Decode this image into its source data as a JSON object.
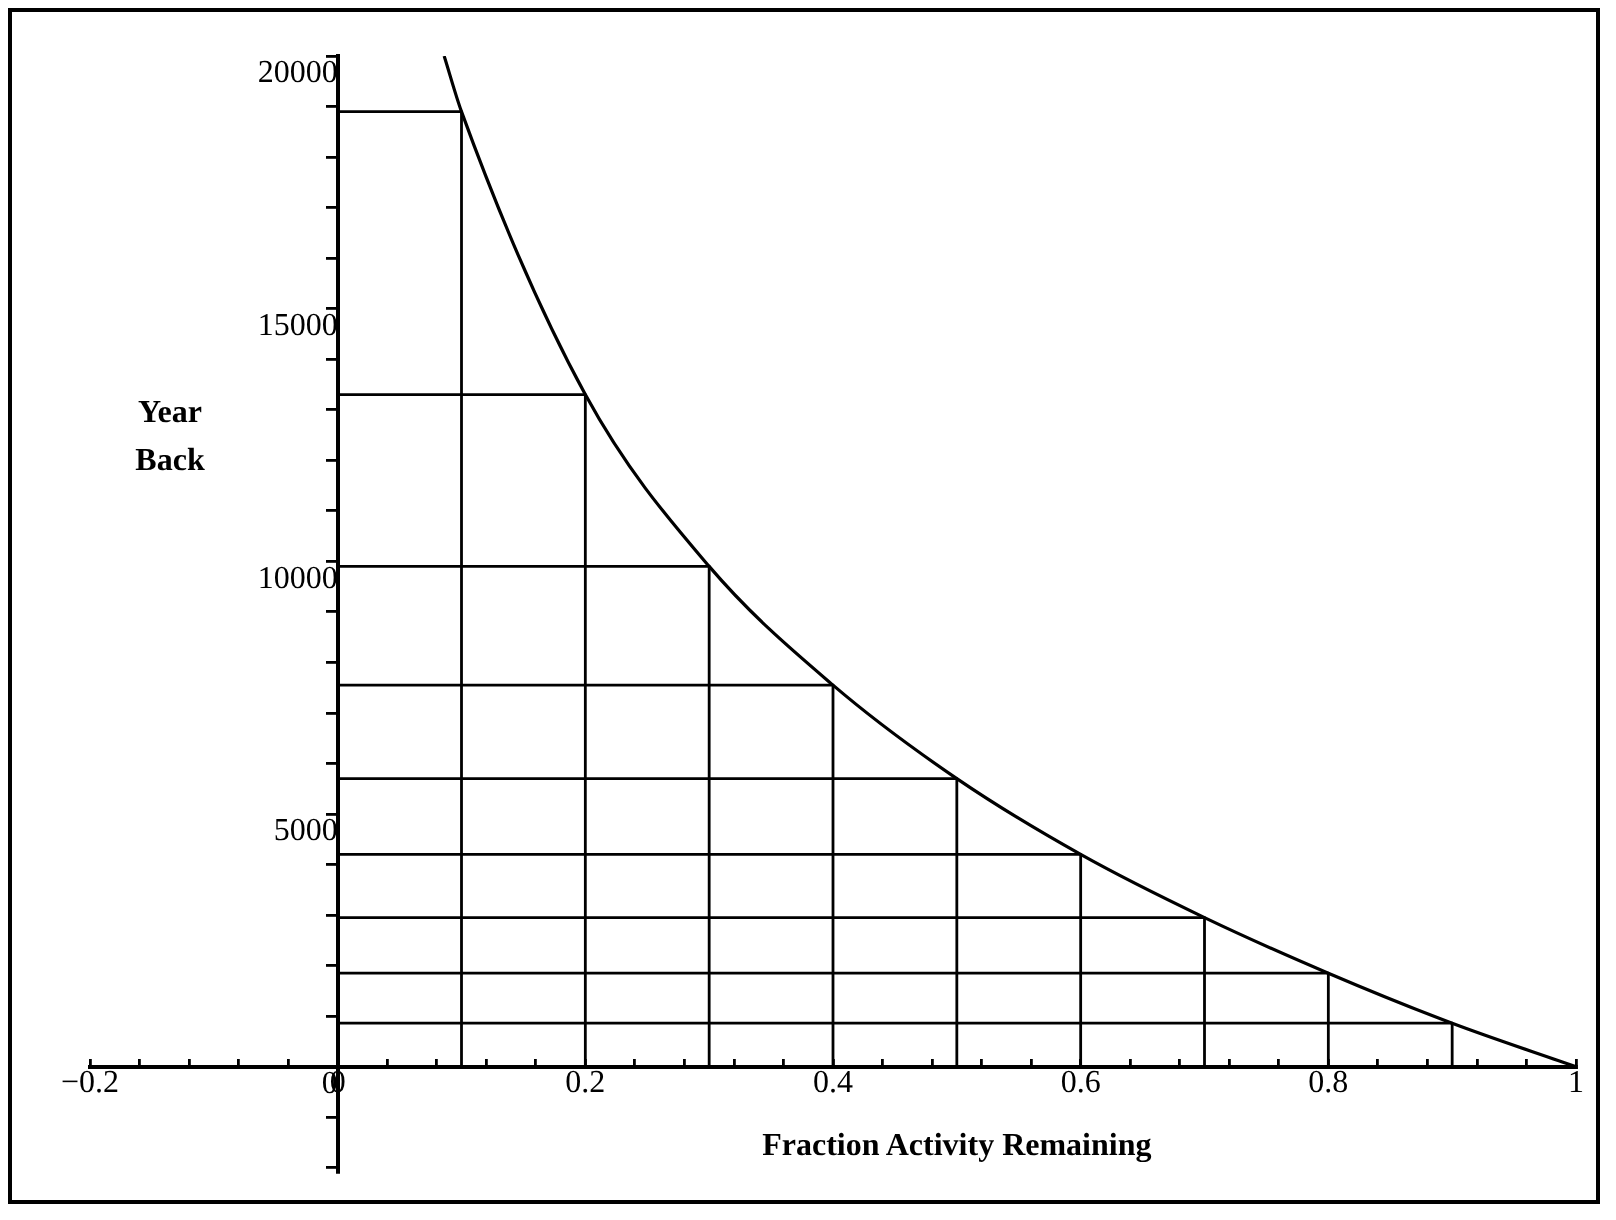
{
  "chart_data": {
    "type": "line",
    "xlabel": "Fraction Activity Remaining",
    "ylabel": "Year Back",
    "x": [
      0.086,
      0.1,
      0.2,
      0.3,
      0.4,
      0.5,
      0.6,
      0.7,
      0.8,
      0.9,
      1
    ],
    "series": [
      {
        "color": "#000000",
        "values": [
          20000,
          18900,
          13300,
          9900,
          7550,
          5700,
          4200,
          2950,
          1850,
          860,
          0
        ]
      },
      {
        "color": "#000000",
        "x": [
          0,
          0.1,
          0.1
        ],
        "values": [
          18900,
          18900,
          0
        ]
      },
      {
        "color": "#000000",
        "x": [
          0,
          0.2,
          0.2
        ],
        "values": [
          13300,
          13300,
          0
        ]
      },
      {
        "color": "#000000",
        "x": [
          0,
          0.3,
          0.3
        ],
        "values": [
          9900,
          9900,
          0
        ]
      },
      {
        "color": "#000000",
        "x": [
          0,
          0.4,
          0.4
        ],
        "values": [
          7550,
          7550,
          0
        ]
      },
      {
        "color": "#000000",
        "x": [
          0,
          0.5,
          0.5
        ],
        "values": [
          5700,
          5700,
          0
        ]
      },
      {
        "color": "#000000",
        "x": [
          0,
          0.6,
          0.6
        ],
        "values": [
          4200,
          4200,
          0
        ]
      },
      {
        "color": "#000000",
        "x": [
          0,
          0.7,
          0.7
        ],
        "values": [
          2950,
          2950,
          0
        ]
      },
      {
        "color": "#000000",
        "x": [
          0,
          0.8,
          0.8
        ],
        "values": [
          1850,
          1850,
          0
        ]
      },
      {
        "color": "#000000",
        "x": [
          0,
          0.9,
          0.9
        ],
        "values": [
          860,
          860,
          0
        ]
      }
    ],
    "xlim": [
      -0.2,
      1
    ],
    "ylim": [
      -2100,
      20000
    ],
    "xticks": [
      -0.2,
      {
        "value": -0.16,
        "label": null
      },
      {
        "value": -0.12,
        "label": null
      },
      {
        "value": -0.08,
        "label": null
      },
      {
        "value": -0.04,
        "label": null
      },
      0,
      {
        "value": 0.04,
        "label": null
      },
      {
        "value": 0.08,
        "label": null
      },
      {
        "value": 0.12,
        "label": null
      },
      {
        "value": 0.16,
        "label": null
      },
      0.2,
      {
        "value": 0.24,
        "label": null
      },
      {
        "value": 0.28,
        "label": null
      },
      {
        "value": 0.32,
        "label": null
      },
      {
        "value": 0.36,
        "label": null
      },
      0.4,
      {
        "value": 0.44,
        "label": null
      },
      {
        "value": 0.48,
        "label": null
      },
      {
        "value": 0.52,
        "label": null
      },
      {
        "value": 0.56,
        "label": null
      },
      0.6,
      {
        "value": 0.64,
        "label": null
      },
      {
        "value": 0.68,
        "label": null
      },
      {
        "value": 0.72,
        "label": null
      },
      {
        "value": 0.76,
        "label": null
      },
      0.8,
      {
        "value": 0.84,
        "label": null
      },
      {
        "value": 0.88,
        "label": null
      },
      {
        "value": 0.92,
        "label": null
      },
      {
        "value": 0.96,
        "label": null
      },
      1
    ],
    "yticks": [
      {
        "value": -2000,
        "label": null
      },
      {
        "value": -1000,
        "label": null
      },
      0,
      {
        "value": 1000,
        "label": null
      },
      {
        "value": 2000,
        "label": null
      },
      {
        "value": 3000,
        "label": null
      },
      {
        "value": 4000,
        "label": null
      },
      5000,
      {
        "value": 6000,
        "label": null
      },
      {
        "value": 7000,
        "label": null
      },
      {
        "value": 8000,
        "label": null
      },
      {
        "value": 9000,
        "label": null
      },
      10000,
      {
        "value": 11000,
        "label": null
      },
      {
        "value": 12000,
        "label": null
      },
      {
        "value": 13000,
        "label": null
      },
      {
        "value": 14000,
        "label": null
      },
      15000,
      {
        "value": 16000,
        "label": null
      },
      {
        "value": 17000,
        "label": null
      },
      {
        "value": 18000,
        "label": null
      },
      {
        "value": 19000,
        "label": null
      },
      20000
    ],
    "grid": false,
    "legend": false,
    "marker": "none",
    "line_style": "solid"
  }
}
